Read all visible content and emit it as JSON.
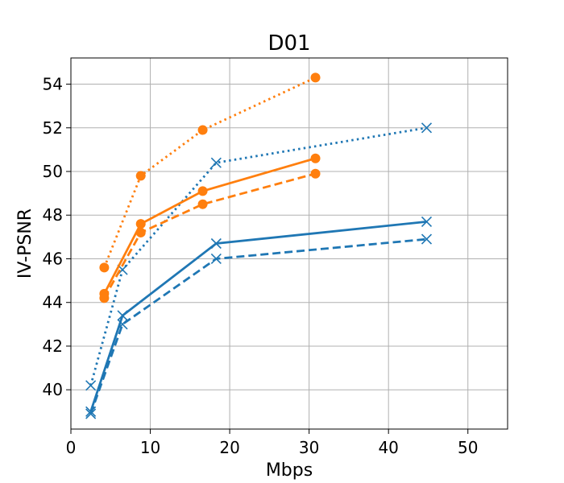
{
  "chart_data": {
    "type": "line",
    "title": "D01",
    "xlabel": "Mbps",
    "ylabel": "IV-PSNR",
    "xlim": [
      0,
      55
    ],
    "ylim": [
      38.2,
      55.2
    ],
    "xticks": [
      0,
      10,
      20,
      30,
      40,
      50
    ],
    "yticks": [
      40,
      42,
      44,
      46,
      48,
      50,
      52,
      54
    ],
    "grid": true,
    "series": [
      {
        "name": "blue-solid",
        "color": "#1f77b4",
        "dash": "solid",
        "marker": "x",
        "x": [
          2.5,
          6.5,
          18.3,
          44.8
        ],
        "y": [
          39.0,
          43.4,
          46.7,
          47.7
        ]
      },
      {
        "name": "blue-dashed",
        "color": "#1f77b4",
        "dash": "dashed",
        "marker": "x",
        "x": [
          2.5,
          6.5,
          18.3,
          44.8
        ],
        "y": [
          38.9,
          43.0,
          46.0,
          46.9
        ]
      },
      {
        "name": "blue-dotted",
        "color": "#1f77b4",
        "dash": "dotted",
        "marker": "x",
        "x": [
          2.5,
          6.5,
          18.3,
          44.8
        ],
        "y": [
          40.2,
          45.5,
          50.4,
          52.0
        ]
      },
      {
        "name": "orange-solid",
        "color": "#ff7f0e",
        "dash": "solid",
        "marker": "o",
        "x": [
          4.2,
          8.8,
          16.6,
          30.8
        ],
        "y": [
          44.4,
          47.6,
          49.1,
          50.6
        ]
      },
      {
        "name": "orange-dashed",
        "color": "#ff7f0e",
        "dash": "dashed",
        "marker": "o",
        "x": [
          4.2,
          8.8,
          16.6,
          30.8
        ],
        "y": [
          44.2,
          47.2,
          48.5,
          49.9
        ]
      },
      {
        "name": "orange-dotted",
        "color": "#ff7f0e",
        "dash": "dotted",
        "marker": "o",
        "x": [
          4.2,
          8.8,
          16.6,
          30.8
        ],
        "y": [
          45.6,
          49.8,
          51.9,
          54.3
        ]
      }
    ]
  }
}
